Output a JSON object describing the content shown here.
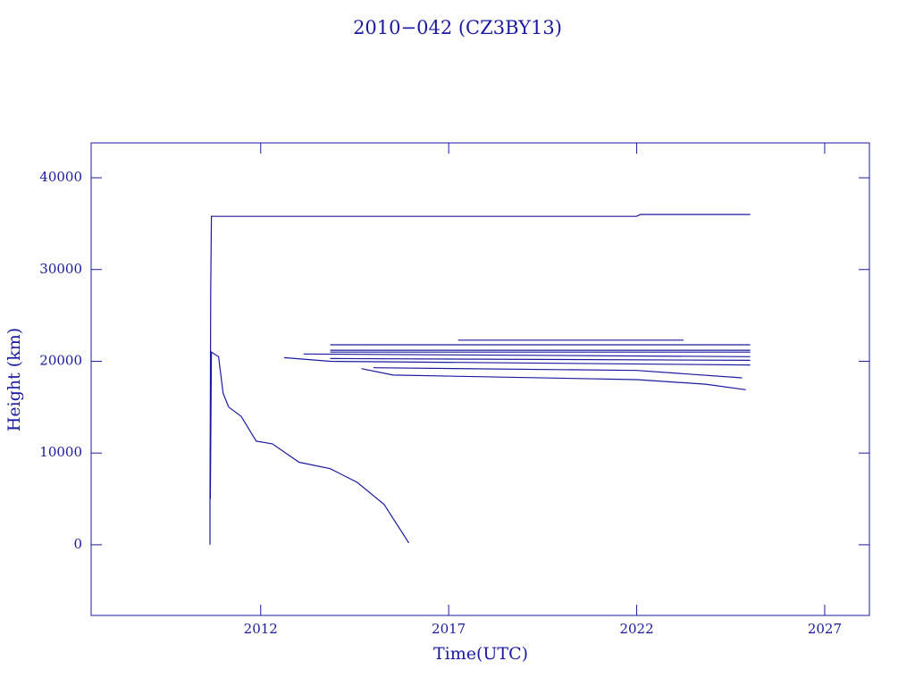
{
  "chart_data": {
    "type": "line",
    "title": "2010−042 (CZ3BY13)",
    "x_label": "Time(UTC)",
    "y_label": "Height (km)",
    "xlim": [
      2007.49,
      2028.19
    ],
    "ylim": [
      -7700,
      43800
    ],
    "xticks": [
      2012,
      2017,
      2022,
      2027
    ],
    "yticks": [
      0,
      10000,
      20000,
      30000,
      40000
    ],
    "series": [
      {
        "color": "#1a1aa0",
        "x": [
          2010.65,
          2010.65,
          2010.67,
          2010.69,
          2022.0,
          2022.1,
          2025.02
        ],
        "values": [
          0,
          5000,
          27500,
          35800,
          35800,
          36000,
          36000
        ]
      },
      {
        "color": "#1a1aa0",
        "x": [
          2010.66,
          2010.69,
          2010.88,
          2011.0,
          2011.15,
          2011.48,
          2011.88,
          2012.31,
          2013.02,
          2013.85,
          2014.57,
          2015.28,
          2015.94
        ],
        "values": [
          5000,
          21000,
          20500,
          16500,
          15000,
          14000,
          11300,
          11000,
          9000,
          8300,
          6800,
          4400,
          200
        ]
      },
      {
        "color": "#1a1aa0",
        "x": [
          2012.62,
          2013.85,
          2025.02
        ],
        "values": [
          20400,
          20000,
          19600
        ]
      },
      {
        "color": "#1a1aa0",
        "x": [
          2013.85,
          2025.02
        ],
        "values": [
          21800,
          21800
        ]
      },
      {
        "color": "#1a1aa0",
        "x": [
          2017.25,
          2023.25
        ],
        "values": [
          22300,
          22300
        ]
      },
      {
        "color": "#1a1aa0",
        "x": [
          2014.68,
          2015.52,
          2022.0,
          2023.83,
          2024.9
        ],
        "values": [
          19200,
          18500,
          18000,
          17500,
          16900
        ]
      },
      {
        "color": "#1a1aa0",
        "x": [
          2013.85,
          2025.02
        ],
        "values": [
          21000,
          21000
        ]
      },
      {
        "color": "#1a1aa0",
        "x": [
          2013.85,
          2025.02
        ],
        "values": [
          21200,
          21200
        ]
      },
      {
        "color": "#1a1aa0",
        "x": [
          2013.14,
          2025.02
        ],
        "values": [
          20800,
          20500
        ]
      },
      {
        "color": "#1a1aa0",
        "x": [
          2013.85,
          2025.02
        ],
        "values": [
          20300,
          20100
        ]
      },
      {
        "color": "#1a1aa0",
        "x": [
          2015.0,
          2022.0,
          2024.8
        ],
        "values": [
          19300,
          19000,
          18200
        ]
      }
    ]
  }
}
